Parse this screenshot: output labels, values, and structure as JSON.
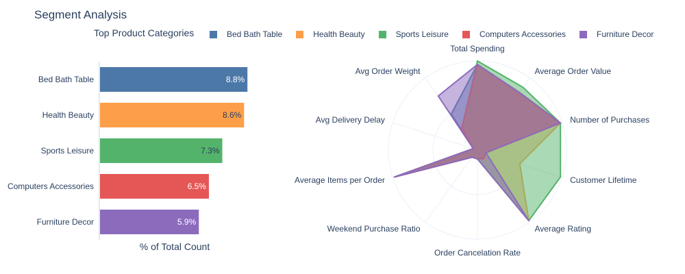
{
  "page": {
    "title": "Segment Analysis"
  },
  "chart_data": [
    {
      "type": "bar",
      "orientation": "horizontal",
      "title": "Top Product Categories",
      "categories": [
        "Bed Bath Table",
        "Health Beauty",
        "Sports Leisure",
        "Computers Accessories",
        "Furniture Decor"
      ],
      "values": [
        8.8,
        8.6,
        7.3,
        6.5,
        5.9
      ],
      "value_labels": [
        "8.8%",
        "8.6%",
        "7.3%",
        "6.5%",
        "5.9%"
      ],
      "colors": [
        "#4c78a8",
        "#fd9f48",
        "#54b36b",
        "#e45756",
        "#8c6bbd"
      ],
      "xlabel": "% of Total Count",
      "xlim": [
        0,
        9.2
      ],
      "grid": false
    },
    {
      "type": "radar",
      "axes": [
        "Total Spending",
        "Average Order Value",
        "Number of Purchases",
        "Customer Lifetime",
        "Average Rating",
        "Order Cancelation Rate",
        "Weekend Purchase Ratio",
        "Average Items per Order",
        "Avg Delivery Delay",
        "Avg Order Weight"
      ],
      "range": [
        0,
        1
      ],
      "legend_position": "top",
      "series": [
        {
          "name": "Bed Bath Table",
          "color": "#4c78a8",
          "values": [
            0.96,
            0.8,
            0.98,
            0.1,
            0.12,
            0.1,
            0.1,
            0.98,
            0.05,
            0.5
          ]
        },
        {
          "name": "Health Beauty",
          "color": "#fd9f48",
          "values": [
            0.93,
            0.78,
            0.98,
            0.5,
            0.98,
            0.1,
            0.1,
            0.98,
            0.05,
            0.3
          ]
        },
        {
          "name": "Sports Leisure",
          "color": "#54b36b",
          "values": [
            1.0,
            0.87,
            0.98,
            0.98,
            0.98,
            0.1,
            0.1,
            0.98,
            0.05,
            0.3
          ]
        },
        {
          "name": "Computers Accessories",
          "color": "#e45756",
          "values": [
            0.96,
            0.8,
            0.98,
            0.1,
            0.12,
            0.1,
            0.1,
            0.98,
            0.05,
            0.3
          ]
        },
        {
          "name": "Furniture Decor",
          "color": "#8c6bbd",
          "values": [
            0.96,
            0.8,
            0.98,
            0.1,
            0.98,
            0.1,
            0.1,
            0.98,
            0.05,
            0.75
          ]
        }
      ]
    }
  ]
}
